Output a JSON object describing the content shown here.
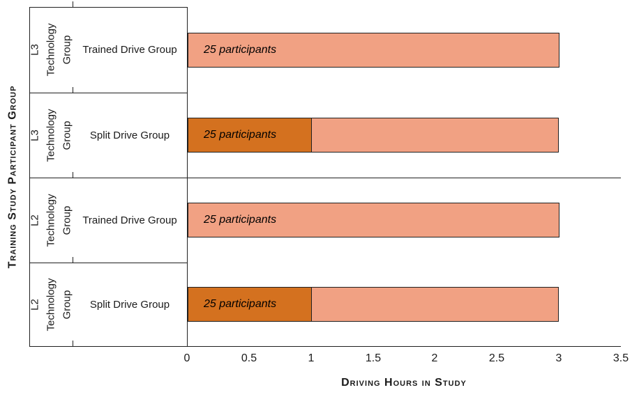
{
  "chart_data": {
    "type": "bar",
    "orientation": "horizontal",
    "stacked": true,
    "xlabel": "Driving Hours in Study",
    "ylabel": "Training Study Participant Group",
    "xlim": [
      0,
      3.5
    ],
    "xtick_labels": [
      "0",
      "0.5",
      "1",
      "1.5",
      "2",
      "2.5",
      "3",
      "3.5"
    ],
    "grid": "off",
    "colors": {
      "light": "#F1A183",
      "dark": "#D4711F",
      "line": "#1f1f1f"
    },
    "rows": [
      {
        "group": "L3 Technology Group",
        "subgroup": "Trained Drive Group",
        "segments": [
          {
            "value": 3,
            "color": "light",
            "label": "25 participants"
          }
        ]
      },
      {
        "group": "L3 Technology Group",
        "subgroup": "Split Drive Group",
        "segments": [
          {
            "value": 1,
            "color": "dark",
            "label": "25 participants"
          },
          {
            "value": 2,
            "color": "light",
            "label": ""
          }
        ]
      },
      {
        "group": "L2 Technology Group",
        "subgroup": "Trained Drive Group",
        "segments": [
          {
            "value": 3,
            "color": "light",
            "label": "25 participants"
          }
        ]
      },
      {
        "group": "L2 Technology Group",
        "subgroup": "Split Drive Group",
        "segments": [
          {
            "value": 1,
            "color": "dark",
            "label": "25 participants"
          },
          {
            "value": 2,
            "color": "light",
            "label": ""
          }
        ]
      }
    ]
  }
}
